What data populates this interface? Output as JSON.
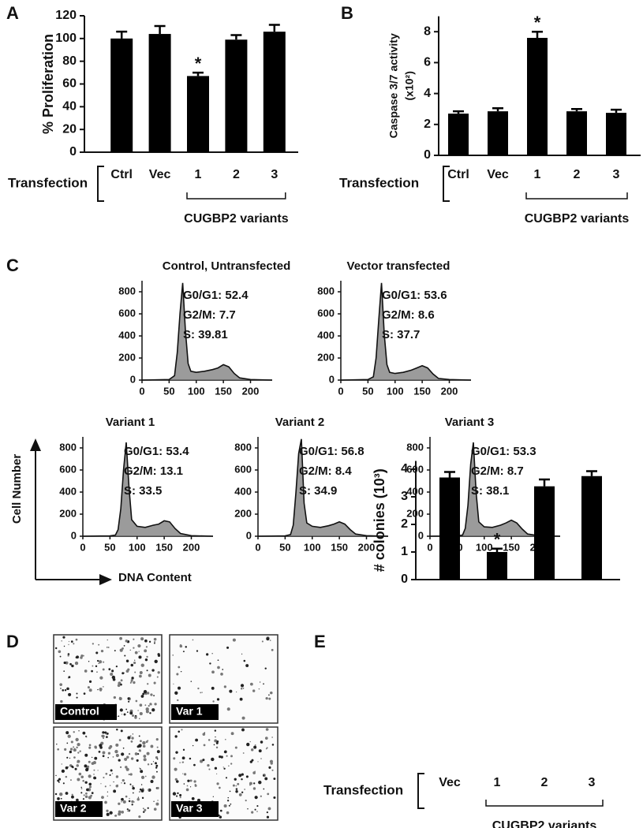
{
  "chart_data": [
    {
      "type": "bar",
      "panel": "A",
      "ylabel": "% Proliferation",
      "categories": [
        "Ctrl",
        "Vec",
        "1",
        "2",
        "3"
      ],
      "values": [
        100,
        104,
        67,
        99,
        106
      ],
      "errors": [
        6,
        7,
        3,
        4,
        6
      ],
      "color": "#000000",
      "ylim": [
        0,
        120
      ],
      "yticks": [
        0,
        20,
        40,
        60,
        80,
        100,
        120
      ],
      "group_label": "Transfection",
      "bracket_label": "CUGBP2 variants",
      "annotations": [
        {
          "text": "*",
          "category": "1"
        }
      ]
    },
    {
      "type": "bar",
      "panel": "B",
      "ylabel": "Caspase 3/7 activity",
      "ylabel_line2": "(x10²)",
      "categories": [
        "Ctrl",
        "Vec",
        "1",
        "2",
        "3"
      ],
      "values": [
        2.7,
        2.85,
        7.6,
        2.85,
        2.75
      ],
      "errors": [
        0.15,
        0.2,
        0.4,
        0.15,
        0.2
      ],
      "color": "#000000",
      "ylim": [
        0,
        9
      ],
      "yticks": [
        0,
        2,
        4,
        6,
        8
      ],
      "group_label": "Transfection",
      "bracket_label": "CUGBP2 variants",
      "annotations": [
        {
          "text": "*",
          "category": "1"
        }
      ]
    },
    {
      "type": "histogram-curve",
      "panel": "C",
      "title": "Control, Untransfected",
      "annotations": [
        "G0/G1: 52.4",
        "G2/M: 7.7",
        "S: 39.81"
      ],
      "x": [
        0,
        50,
        60,
        65,
        70,
        75,
        80,
        85,
        90,
        100,
        115,
        130,
        140,
        150,
        160,
        170,
        180,
        200,
        240
      ],
      "values": [
        0,
        5,
        40,
        250,
        600,
        880,
        450,
        150,
        80,
        70,
        80,
        95,
        110,
        140,
        120,
        60,
        20,
        5,
        0
      ],
      "color": "#7a7a7a",
      "xlim": [
        0,
        240
      ],
      "xticks": [
        0,
        50,
        100,
        150,
        200
      ],
      "ylim": [
        0,
        900
      ],
      "yticks": [
        0,
        200,
        400,
        600,
        800
      ]
    },
    {
      "type": "histogram-curve",
      "title": "Vector transfected",
      "annotations": [
        "G0/G1: 53.6",
        "G2/M: 8.6",
        "S: 37.7"
      ],
      "x": [
        0,
        50,
        60,
        65,
        70,
        75,
        80,
        85,
        90,
        100,
        115,
        130,
        140,
        150,
        160,
        170,
        180,
        200,
        240
      ],
      "values": [
        0,
        5,
        30,
        200,
        550,
        880,
        420,
        140,
        70,
        60,
        70,
        90,
        110,
        130,
        110,
        55,
        15,
        5,
        0
      ],
      "color": "#7a7a7a",
      "xlim": [
        0,
        240
      ],
      "xticks": [
        0,
        50,
        100,
        150,
        200
      ],
      "ylim": [
        0,
        900
      ],
      "yticks": [
        0,
        200,
        400,
        600,
        800
      ]
    },
    {
      "type": "histogram-curve",
      "title": "Variant 1",
      "annotations": [
        "G0/G1: 53.4",
        "G2/M: 13.1",
        "S: 33.5"
      ],
      "x": [
        0,
        50,
        60,
        65,
        70,
        75,
        80,
        85,
        90,
        100,
        115,
        130,
        140,
        150,
        160,
        170,
        180,
        200,
        240
      ],
      "values": [
        0,
        3,
        10,
        60,
        250,
        600,
        850,
        450,
        150,
        90,
        80,
        100,
        110,
        140,
        130,
        70,
        25,
        5,
        0
      ],
      "color": "#7a7a7a",
      "xlim": [
        0,
        240
      ],
      "xticks": [
        0,
        50,
        100,
        150,
        200
      ],
      "ylim": [
        0,
        900
      ],
      "yticks": [
        0,
        200,
        400,
        600,
        800
      ]
    },
    {
      "type": "histogram-curve",
      "title": "Variant 2",
      "annotations": [
        "G0/G1: 56.8",
        "G2/M: 8.4",
        "S: 34.9"
      ],
      "x": [
        0,
        50,
        60,
        65,
        70,
        75,
        80,
        85,
        90,
        100,
        115,
        130,
        140,
        150,
        160,
        170,
        180,
        200,
        240
      ],
      "values": [
        0,
        3,
        15,
        100,
        400,
        750,
        880,
        300,
        120,
        90,
        80,
        95,
        110,
        130,
        110,
        60,
        20,
        5,
        0
      ],
      "color": "#7a7a7a",
      "xlim": [
        0,
        240
      ],
      "xticks": [
        0,
        50,
        100,
        150,
        200
      ],
      "ylim": [
        0,
        900
      ],
      "yticks": [
        0,
        200,
        400,
        600,
        800
      ]
    },
    {
      "type": "histogram-curve",
      "title": "Variant 3",
      "annotations": [
        "G0/G1: 53.3",
        "G2/M: 8.7",
        "S: 38.1"
      ],
      "x": [
        0,
        50,
        60,
        65,
        70,
        75,
        80,
        85,
        90,
        100,
        115,
        130,
        140,
        150,
        160,
        170,
        180,
        200,
        240
      ],
      "values": [
        0,
        3,
        10,
        70,
        280,
        650,
        850,
        400,
        130,
        85,
        80,
        100,
        120,
        145,
        120,
        65,
        20,
        5,
        0
      ],
      "color": "#7a7a7a",
      "xlim": [
        0,
        240
      ],
      "xticks": [
        0,
        50,
        100,
        150,
        200
      ],
      "ylim": [
        0,
        900
      ],
      "yticks": [
        0,
        200,
        400,
        600,
        800
      ]
    },
    {
      "type": "bar",
      "panel": "E",
      "ylabel": "# colonies (10³)",
      "categories": [
        "Vec",
        "1",
        "2",
        "3"
      ],
      "values": [
        3.7,
        1.0,
        3.38,
        3.75
      ],
      "errors": [
        0.2,
        0.12,
        0.25,
        0.18
      ],
      "color": "#000000",
      "ylim": [
        0,
        4.3
      ],
      "yticks": [
        0,
        1,
        2,
        3,
        4
      ],
      "group_label": "Transfection",
      "bracket_label": "CUGBP2 variants",
      "annotations": [
        {
          "text": "*",
          "category": "1"
        }
      ]
    }
  ],
  "flow_axes": {
    "y_label": "Cell Number",
    "x_label": "DNA Content"
  },
  "image_panel": {
    "panel": "D",
    "labels": [
      "Control",
      "Var 1",
      "Var 2",
      "Var 3"
    ]
  }
}
